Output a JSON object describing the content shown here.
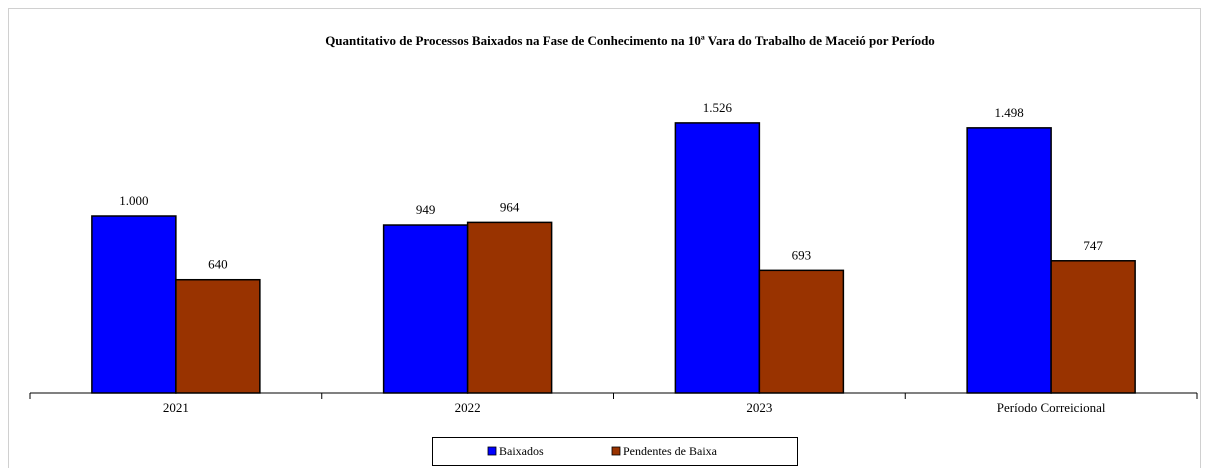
{
  "chart_data": {
    "type": "bar",
    "title": "Quantitativo de Processos Baixados na Fase de Conhecimento na 10ª Vara do Trabalho de Maceió por Período",
    "categories": [
      "2021",
      "2022",
      "2023",
      "Período Correicional"
    ],
    "series": [
      {
        "name": "Baixados",
        "color": "#0000ff",
        "values": [
          1000,
          949,
          1526,
          1498
        ],
        "value_labels": [
          "1.000",
          "949",
          "1.526",
          "1.498"
        ]
      },
      {
        "name": "Pendentes de Baixa",
        "color": "#993300",
        "values": [
          640,
          964,
          693,
          747
        ],
        "value_labels": [
          "640",
          "964",
          "693",
          "747"
        ]
      }
    ],
    "ylim": [
      0,
      1800
    ],
    "legend": "bottom"
  }
}
